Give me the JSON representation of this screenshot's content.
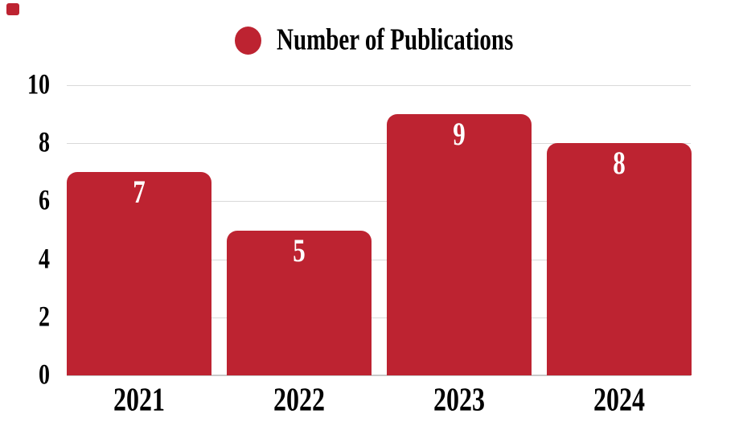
{
  "legend": {
    "label": "Number of Publications",
    "marker": "circle-icon"
  },
  "colors": {
    "bar": "#BD2331",
    "gridline": "#D9D9D9",
    "baseline": "#C9C9C9",
    "axis_text": "#000000",
    "value_label_text": "#FFFFFF",
    "corner_square": "#BD2331",
    "background": "#FFFFFF"
  },
  "decor": {
    "corner_square_present": true
  },
  "chart_data": {
    "type": "bar",
    "title": "",
    "xlabel": "",
    "ylabel": "",
    "categories": [
      "2021",
      "2022",
      "2023",
      "2024"
    ],
    "values": [
      7,
      5,
      9,
      8
    ],
    "value_labels": [
      "7",
      "5",
      "9",
      "8"
    ],
    "series": [
      {
        "name": "Number of Publications",
        "values": [
          7,
          5,
          9,
          8
        ]
      }
    ],
    "y_ticks": [
      0,
      2,
      4,
      6,
      8,
      10
    ],
    "ylim": [
      0,
      10
    ],
    "grid": true,
    "legend_position": "top-center",
    "bar_color": "#BD2331"
  }
}
